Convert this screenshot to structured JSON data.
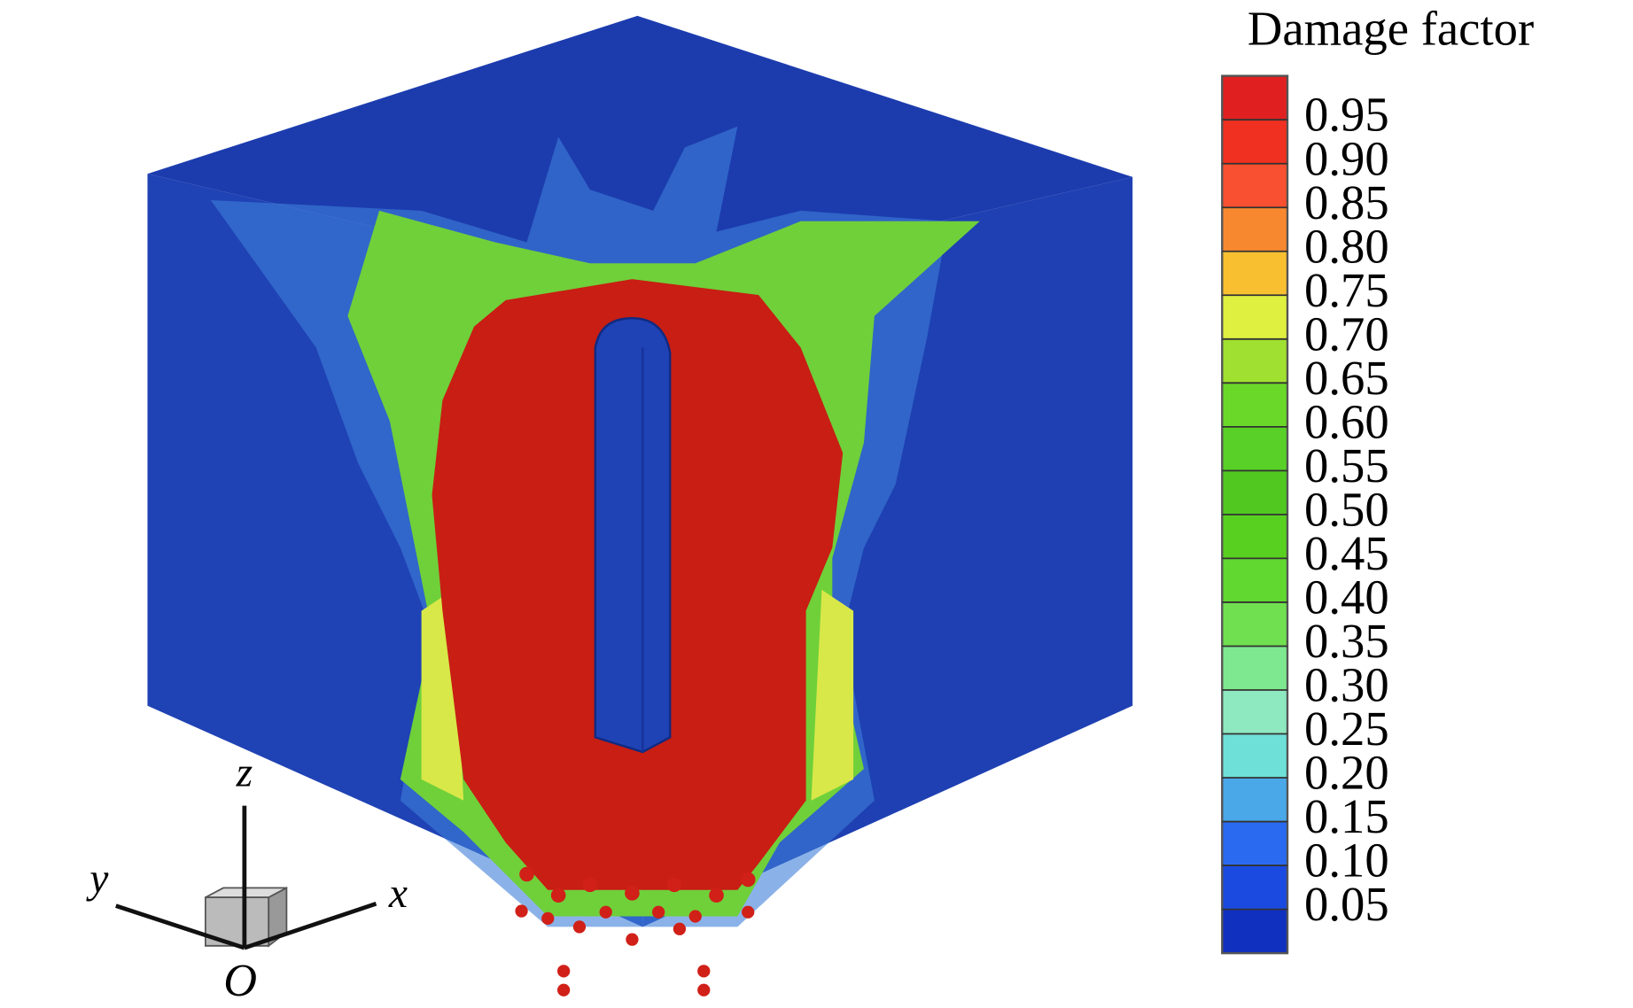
{
  "colorbar": {
    "title": "Damage factor",
    "limits": [
      0,
      1
    ],
    "ticks": [
      0.95,
      {
        "value": 0.9,
        "label": "0.90"
      },
      0.85,
      {
        "value": 0.8,
        "label": "0.80"
      },
      0.75,
      {
        "value": 0.7,
        "label": "0.70"
      },
      0.65,
      {
        "value": 0.6,
        "label": "0.60"
      },
      0.55,
      {
        "value": 0.5,
        "label": "0.50"
      },
      0.45,
      {
        "value": 0.4,
        "label": "0.40"
      },
      0.35,
      {
        "value": 0.3,
        "label": "0.30"
      },
      0.25,
      {
        "value": 0.2,
        "label": "0.20"
      },
      0.15,
      {
        "value": 0.1,
        "label": "0.10"
      },
      0.05
    ],
    "colors": [
      "#1030c0",
      "#1a4ae0",
      "#2a6af0",
      "#4aa8e8",
      "#6ee0d8",
      "#8ee8c0",
      "#7ee890",
      "#70e050",
      "#60d830",
      "#58d020",
      "#50c820",
      "#58d028",
      "#6ad828",
      "#a0e030",
      "#e0f040",
      "#f8c030",
      "#f88830",
      "#f85030",
      "#f03020",
      "#e02020"
    ]
  },
  "axes_triad": {
    "z": "z",
    "y": "y",
    "x": "x",
    "origin": "O"
  }
}
